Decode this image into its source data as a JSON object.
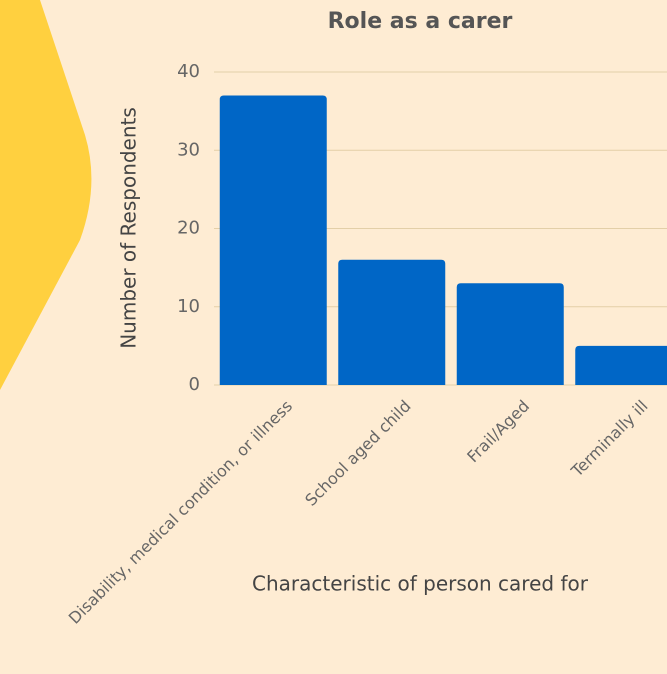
{
  "chart_data": {
    "type": "bar",
    "title": "Role as a carer",
    "x_label": "Characteristic of person cared for",
    "y_label": "Number of Respondents",
    "categories": [
      "Disability, medical condition, or illness",
      "School aged child",
      "Frail/Aged",
      "Terminally ill"
    ],
    "values": [
      37,
      16,
      13,
      5
    ],
    "color": "#0066c6",
    "ylim": [
      0,
      40
    ],
    "yticks": [
      0,
      10,
      20,
      30,
      40
    ],
    "grid": true
  }
}
